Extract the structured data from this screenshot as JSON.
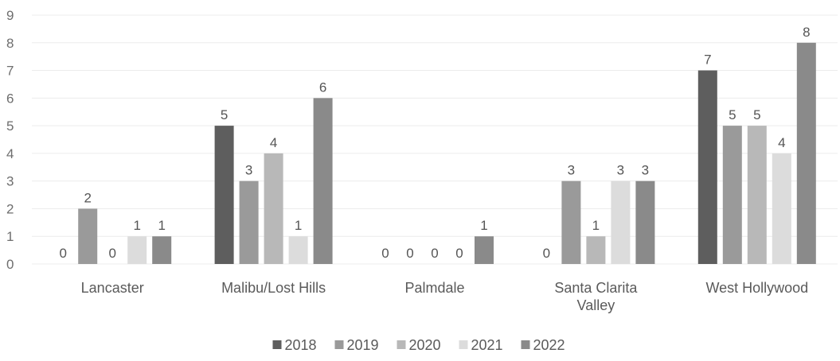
{
  "chart_data": {
    "type": "bar",
    "title": "",
    "xlabel": "",
    "ylabel": "",
    "ylim": [
      0,
      9
    ],
    "yticks": [
      0,
      1,
      2,
      3,
      4,
      5,
      6,
      7,
      8,
      9
    ],
    "grid": true,
    "legend_position": "bottom",
    "categories": [
      "Lancaster",
      "Malibu/Lost Hills",
      "Palmdale",
      "Santa Clarita Valley",
      "West Hollywood"
    ],
    "series": [
      {
        "name": "2018",
        "color": "#5e5e5e",
        "values": [
          0,
          5,
          0,
          0,
          7
        ]
      },
      {
        "name": "2019",
        "color": "#9a9a9a",
        "values": [
          2,
          3,
          0,
          3,
          5
        ]
      },
      {
        "name": "2020",
        "color": "#b8b8b8",
        "values": [
          0,
          4,
          0,
          1,
          5
        ]
      },
      {
        "name": "2021",
        "color": "#dcdcdc",
        "values": [
          1,
          1,
          0,
          3,
          4
        ]
      },
      {
        "name": "2022",
        "color": "#8a8a8a",
        "values": [
          1,
          6,
          1,
          3,
          8
        ]
      }
    ]
  }
}
